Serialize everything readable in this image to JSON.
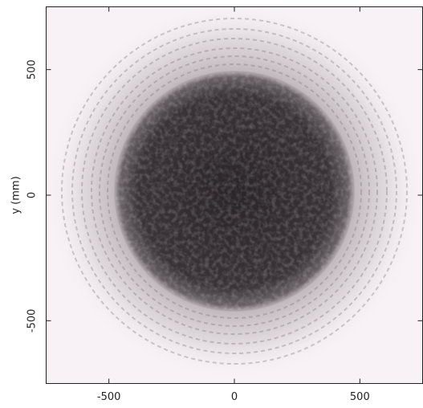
{
  "chart_data": {
    "type": "image",
    "ylabel": "y (mm)",
    "xlim": [
      -750,
      750
    ],
    "ylim": [
      -750,
      750
    ],
    "xticks": [
      -500,
      0,
      500
    ],
    "yticks": [
      -500,
      0,
      500
    ]
  }
}
